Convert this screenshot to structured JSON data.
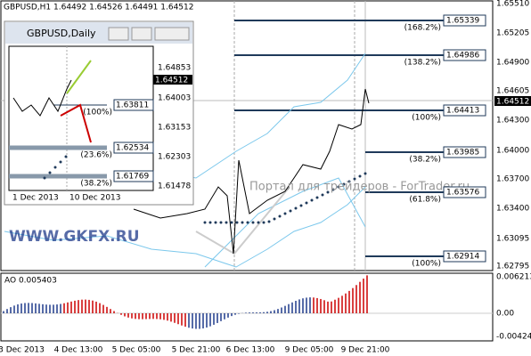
{
  "main": {
    "header": "GBPUSD,H1  1.64492 1.64526 1.64491 1.64512",
    "price_labels": [
      "1.65510",
      "1.65205",
      "1.64900",
      "1.64605",
      "1.64300",
      "1.64000",
      "1.63700",
      "1.63400",
      "1.63095",
      "1.62795"
    ],
    "current_price": "1.64512",
    "fib_prices": [
      "1.65339",
      "1.64986",
      "1.64413",
      "1.63985",
      "1.63576",
      "1.62914"
    ],
    "fib_levels": [
      "(168.2%)",
      "(138.2%)",
      "(100%)",
      "(38.2%)",
      "(61.8%)",
      "(100%)"
    ],
    "time_labels": [
      "3 Dec 2013",
      "4 Dec 13:00",
      "5 Dec 05:00",
      "5 Dec 21:00",
      "6 Dec 13:00",
      "9 Dec 05:00",
      "9 Dec 21:00"
    ],
    "watermark": "WWW.GKFX.RU",
    "portal": "Портал для трейдеров - ForTrader.ru"
  },
  "ao": {
    "label": "AO 0.005403",
    "axis_labels": [
      "0.006213",
      "0.00",
      "-0.004242"
    ]
  },
  "inset": {
    "title": "GBPUSD,Daily",
    "price_labels": [
      "1.64853",
      "1.64003",
      "1.63153",
      "1.62303",
      "1.61478"
    ],
    "current_price": "1.64512",
    "fib_prices": [
      "1.63811",
      "1.62534",
      "1.61769"
    ],
    "fib_levels": [
      "(100%)",
      "(23.6%)",
      "(38.2%)"
    ],
    "time_labels": [
      "1 Dec 2013",
      "10 Dec 2013"
    ]
  }
}
